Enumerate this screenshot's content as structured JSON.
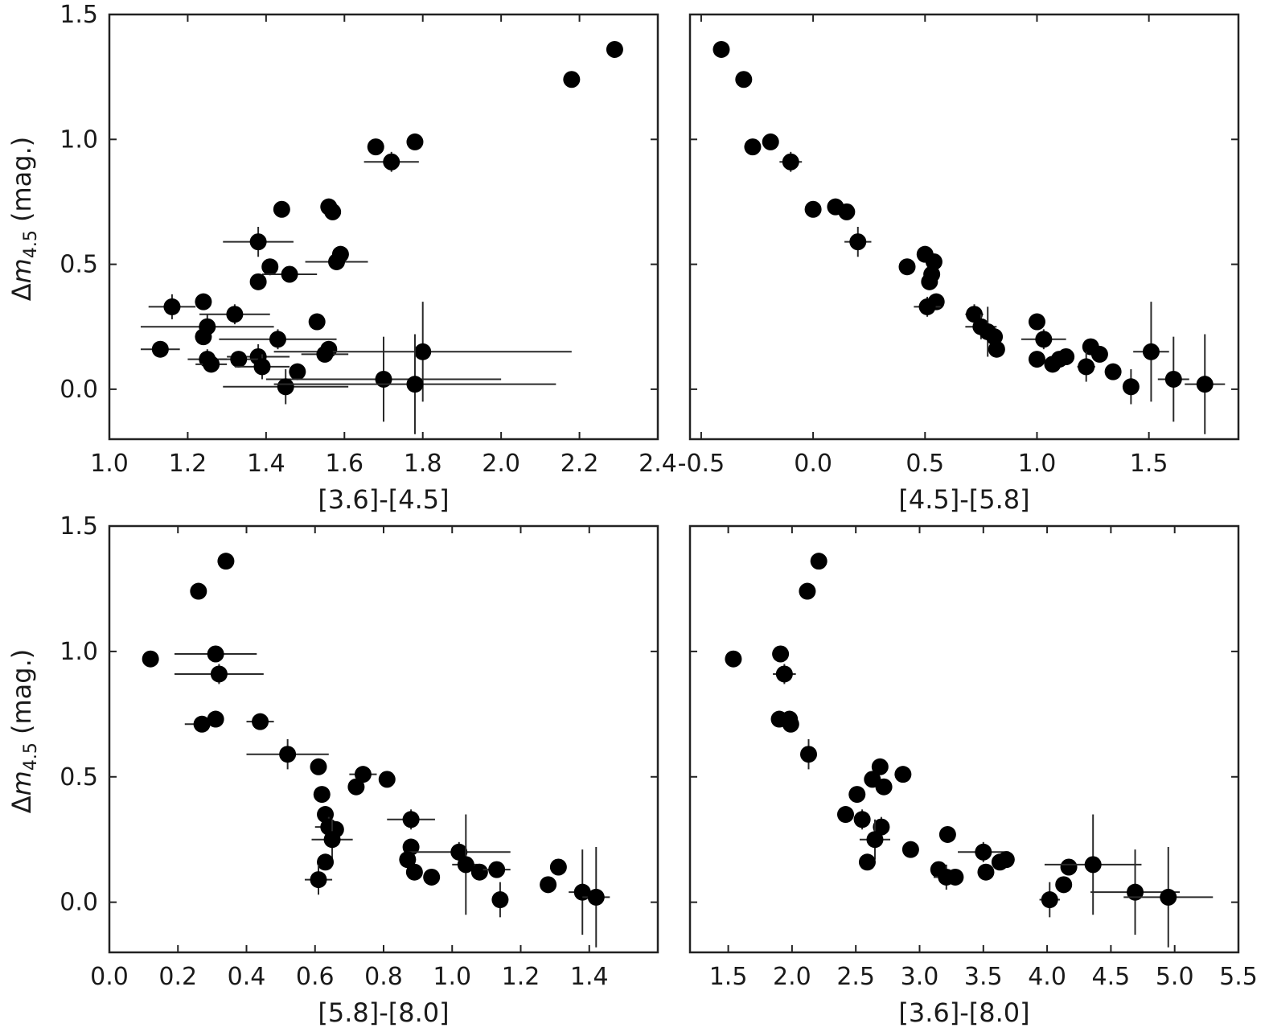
{
  "chart_data": [
    {
      "type": "scatter",
      "xlabel": "[3.6]-[4.5]",
      "ylabel_prefix": "Δ",
      "ylabel_var": "m",
      "ylabel_sub": "4.5",
      "ylabel_unit": " (mag.)",
      "xlim": [
        1.0,
        2.4
      ],
      "ylim": [
        -0.2,
        1.5
      ],
      "xticks": [
        "1.0",
        "1.2",
        "1.4",
        "1.6",
        "1.8",
        "2.0",
        "2.2",
        "2.4"
      ],
      "yticks": [
        "0.0",
        "0.5",
        "1.0",
        "1.5"
      ],
      "grid": false,
      "points": [
        {
          "x": 2.29,
          "y": 1.36,
          "xe": 0,
          "ye": 0
        },
        {
          "x": 2.18,
          "y": 1.24,
          "xe": 0,
          "ye": 0
        },
        {
          "x": 1.68,
          "y": 0.97,
          "xe": 0,
          "ye": 0
        },
        {
          "x": 1.78,
          "y": 0.99,
          "xe": 0,
          "ye": 0
        },
        {
          "x": 1.72,
          "y": 0.91,
          "xe": 0.07,
          "ye": 0.04
        },
        {
          "x": 1.44,
          "y": 0.72,
          "xe": 0,
          "ye": 0
        },
        {
          "x": 1.56,
          "y": 0.73,
          "xe": 0,
          "ye": 0
        },
        {
          "x": 1.57,
          "y": 0.71,
          "xe": 0,
          "ye": 0
        },
        {
          "x": 1.38,
          "y": 0.59,
          "xe": 0.09,
          "ye": 0.06
        },
        {
          "x": 1.59,
          "y": 0.54,
          "xe": 0,
          "ye": 0
        },
        {
          "x": 1.58,
          "y": 0.51,
          "xe": 0.08,
          "ye": 0.03
        },
        {
          "x": 1.41,
          "y": 0.49,
          "xe": 0,
          "ye": 0
        },
        {
          "x": 1.46,
          "y": 0.46,
          "xe": 0.07,
          "ye": 0
        },
        {
          "x": 1.38,
          "y": 0.43,
          "xe": 0,
          "ye": 0
        },
        {
          "x": 1.16,
          "y": 0.33,
          "xe": 0.06,
          "ye": 0.05
        },
        {
          "x": 1.24,
          "y": 0.35,
          "xe": 0,
          "ye": 0
        },
        {
          "x": 1.32,
          "y": 0.3,
          "xe": 0.09,
          "ye": 0.04
        },
        {
          "x": 1.25,
          "y": 0.25,
          "xe": 0.17,
          "ye": 0.05
        },
        {
          "x": 1.53,
          "y": 0.27,
          "xe": 0,
          "ye": 0
        },
        {
          "x": 1.24,
          "y": 0.21,
          "xe": 0,
          "ye": 0
        },
        {
          "x": 1.43,
          "y": 0.2,
          "xe": 0.15,
          "ye": 0.04
        },
        {
          "x": 1.56,
          "y": 0.16,
          "xe": 0,
          "ye": 0.03
        },
        {
          "x": 1.13,
          "y": 0.16,
          "xe": 0.05,
          "ye": 0
        },
        {
          "x": 1.8,
          "y": 0.15,
          "xe": 0.38,
          "ye": 0.2
        },
        {
          "x": 1.55,
          "y": 0.14,
          "xe": 0.06,
          "ye": 0.03
        },
        {
          "x": 1.25,
          "y": 0.12,
          "xe": 0.05,
          "ye": 0.04
        },
        {
          "x": 1.38,
          "y": 0.13,
          "xe": 0.08,
          "ye": 0.05
        },
        {
          "x": 1.33,
          "y": 0.12,
          "xe": 0.05,
          "ye": 0
        },
        {
          "x": 1.26,
          "y": 0.1,
          "xe": 0.04,
          "ye": 0
        },
        {
          "x": 1.39,
          "y": 0.09,
          "xe": 0.07,
          "ye": 0.05
        },
        {
          "x": 1.48,
          "y": 0.07,
          "xe": 0,
          "ye": 0
        },
        {
          "x": 1.7,
          "y": 0.04,
          "xe": 0.3,
          "ye": 0.17
        },
        {
          "x": 1.45,
          "y": 0.01,
          "xe": 0.16,
          "ye": 0.07
        },
        {
          "x": 1.78,
          "y": 0.02,
          "xe": 0.36,
          "ye": 0.2
        }
      ]
    },
    {
      "type": "scatter",
      "xlabel": "[4.5]-[5.8]",
      "ylabel_prefix": "",
      "ylabel_var": "",
      "ylabel_sub": "",
      "ylabel_unit": "",
      "xlim": [
        -0.55,
        1.9
      ],
      "ylim": [
        -0.2,
        1.5
      ],
      "xticks": [
        "-0.5",
        "0.0",
        "0.5",
        "1.0",
        "1.5"
      ],
      "yticks": [],
      "grid": false,
      "points": [
        {
          "x": -0.41,
          "y": 1.36,
          "xe": 0,
          "ye": 0
        },
        {
          "x": -0.31,
          "y": 1.24,
          "xe": 0,
          "ye": 0
        },
        {
          "x": -0.27,
          "y": 0.97,
          "xe": 0,
          "ye": 0
        },
        {
          "x": -0.19,
          "y": 0.99,
          "xe": 0,
          "ye": 0
        },
        {
          "x": -0.1,
          "y": 0.91,
          "xe": 0.05,
          "ye": 0.04
        },
        {
          "x": 0.0,
          "y": 0.72,
          "xe": 0,
          "ye": 0
        },
        {
          "x": 0.1,
          "y": 0.73,
          "xe": 0,
          "ye": 0
        },
        {
          "x": 0.15,
          "y": 0.71,
          "xe": 0,
          "ye": 0
        },
        {
          "x": 0.2,
          "y": 0.59,
          "xe": 0.06,
          "ye": 0.06
        },
        {
          "x": 0.42,
          "y": 0.49,
          "xe": 0,
          "ye": 0
        },
        {
          "x": 0.5,
          "y": 0.54,
          "xe": 0,
          "ye": 0
        },
        {
          "x": 0.54,
          "y": 0.51,
          "xe": 0,
          "ye": 0.03
        },
        {
          "x": 0.53,
          "y": 0.46,
          "xe": 0,
          "ye": 0
        },
        {
          "x": 0.52,
          "y": 0.43,
          "xe": 0,
          "ye": 0
        },
        {
          "x": 0.55,
          "y": 0.35,
          "xe": 0,
          "ye": 0
        },
        {
          "x": 0.51,
          "y": 0.33,
          "xe": 0.06,
          "ye": 0.04
        },
        {
          "x": 0.72,
          "y": 0.3,
          "xe": 0.04,
          "ye": 0.04
        },
        {
          "x": 0.75,
          "y": 0.25,
          "xe": 0.07,
          "ye": 0.05
        },
        {
          "x": 0.78,
          "y": 0.23,
          "xe": 0,
          "ye": 0.1
        },
        {
          "x": 0.81,
          "y": 0.21,
          "xe": 0,
          "ye": 0
        },
        {
          "x": 0.82,
          "y": 0.16,
          "xe": 0,
          "ye": 0
        },
        {
          "x": 1.0,
          "y": 0.27,
          "xe": 0,
          "ye": 0
        },
        {
          "x": 1.03,
          "y": 0.2,
          "xe": 0.1,
          "ye": 0.04
        },
        {
          "x": 1.0,
          "y": 0.12,
          "xe": 0,
          "ye": 0
        },
        {
          "x": 1.07,
          "y": 0.1,
          "xe": 0,
          "ye": 0
        },
        {
          "x": 1.1,
          "y": 0.12,
          "xe": 0,
          "ye": 0
        },
        {
          "x": 1.13,
          "y": 0.13,
          "xe": 0,
          "ye": 0
        },
        {
          "x": 1.24,
          "y": 0.17,
          "xe": 0,
          "ye": 0
        },
        {
          "x": 1.28,
          "y": 0.14,
          "xe": 0,
          "ye": 0
        },
        {
          "x": 1.22,
          "y": 0.09,
          "xe": 0.04,
          "ye": 0.06
        },
        {
          "x": 1.34,
          "y": 0.07,
          "xe": 0,
          "ye": 0
        },
        {
          "x": 1.51,
          "y": 0.15,
          "xe": 0.08,
          "ye": 0.2
        },
        {
          "x": 1.42,
          "y": 0.01,
          "xe": 0,
          "ye": 0.07
        },
        {
          "x": 1.61,
          "y": 0.04,
          "xe": 0.07,
          "ye": 0.17
        },
        {
          "x": 1.75,
          "y": 0.02,
          "xe": 0.09,
          "ye": 0.2
        }
      ]
    },
    {
      "type": "scatter",
      "xlabel": "[5.8]-[8.0]",
      "ylabel_prefix": "Δ",
      "ylabel_var": "m",
      "ylabel_sub": "4.5",
      "ylabel_unit": " (mag.)",
      "xlim": [
        0.0,
        1.6
      ],
      "ylim": [
        -0.2,
        1.5
      ],
      "xticks": [
        "0.0",
        "0.2",
        "0.4",
        "0.6",
        "0.8",
        "1.0",
        "1.2",
        "1.4"
      ],
      "yticks": [
        "0.0",
        "0.5",
        "1.0",
        "1.5"
      ],
      "grid": false,
      "points": [
        {
          "x": 0.34,
          "y": 1.36,
          "xe": 0,
          "ye": 0
        },
        {
          "x": 0.26,
          "y": 1.24,
          "xe": 0,
          "ye": 0
        },
        {
          "x": 0.12,
          "y": 0.97,
          "xe": 0,
          "ye": 0
        },
        {
          "x": 0.31,
          "y": 0.99,
          "xe": 0.12,
          "ye": 0
        },
        {
          "x": 0.32,
          "y": 0.91,
          "xe": 0.13,
          "ye": 0.04
        },
        {
          "x": 0.27,
          "y": 0.71,
          "xe": 0.05,
          "ye": 0
        },
        {
          "x": 0.31,
          "y": 0.73,
          "xe": 0,
          "ye": 0
        },
        {
          "x": 0.44,
          "y": 0.72,
          "xe": 0.04,
          "ye": 0
        },
        {
          "x": 0.52,
          "y": 0.59,
          "xe": 0.12,
          "ye": 0.06
        },
        {
          "x": 0.61,
          "y": 0.54,
          "xe": 0,
          "ye": 0
        },
        {
          "x": 0.62,
          "y": 0.43,
          "xe": 0,
          "ye": 0
        },
        {
          "x": 0.74,
          "y": 0.51,
          "xe": 0.04,
          "ye": 0.03
        },
        {
          "x": 0.72,
          "y": 0.46,
          "xe": 0,
          "ye": 0
        },
        {
          "x": 0.81,
          "y": 0.49,
          "xe": 0,
          "ye": 0
        },
        {
          "x": 0.63,
          "y": 0.35,
          "xe": 0,
          "ye": 0
        },
        {
          "x": 0.88,
          "y": 0.33,
          "xe": 0.07,
          "ye": 0.04
        },
        {
          "x": 0.64,
          "y": 0.3,
          "xe": 0.04,
          "ye": 0.04
        },
        {
          "x": 0.66,
          "y": 0.29,
          "xe": 0,
          "ye": 0
        },
        {
          "x": 0.65,
          "y": 0.25,
          "xe": 0.06,
          "ye": 0.08
        },
        {
          "x": 0.63,
          "y": 0.16,
          "xe": 0,
          "ye": 0
        },
        {
          "x": 0.88,
          "y": 0.22,
          "xe": 0,
          "ye": 0
        },
        {
          "x": 1.02,
          "y": 0.2,
          "xe": 0.15,
          "ye": 0.04
        },
        {
          "x": 0.87,
          "y": 0.17,
          "xe": 0,
          "ye": 0
        },
        {
          "x": 0.89,
          "y": 0.12,
          "xe": 0,
          "ye": 0
        },
        {
          "x": 0.94,
          "y": 0.1,
          "xe": 0,
          "ye": 0
        },
        {
          "x": 1.04,
          "y": 0.15,
          "xe": 0.04,
          "ye": 0.2
        },
        {
          "x": 1.08,
          "y": 0.12,
          "xe": 0,
          "ye": 0
        },
        {
          "x": 1.13,
          "y": 0.13,
          "xe": 0.04,
          "ye": 0
        },
        {
          "x": 1.14,
          "y": 0.01,
          "xe": 0,
          "ye": 0.07
        },
        {
          "x": 0.61,
          "y": 0.09,
          "xe": 0.04,
          "ye": 0.06
        },
        {
          "x": 1.28,
          "y": 0.07,
          "xe": 0,
          "ye": 0
        },
        {
          "x": 1.31,
          "y": 0.14,
          "xe": 0,
          "ye": 0
        },
        {
          "x": 1.38,
          "y": 0.04,
          "xe": 0.04,
          "ye": 0.17
        },
        {
          "x": 1.42,
          "y": 0.02,
          "xe": 0.04,
          "ye": 0.2
        }
      ]
    },
    {
      "type": "scatter",
      "xlabel": "[3.6]-[8.0]",
      "ylabel_prefix": "",
      "ylabel_var": "",
      "ylabel_sub": "",
      "ylabel_unit": "",
      "xlim": [
        1.2,
        5.5
      ],
      "ylim": [
        -0.2,
        1.5
      ],
      "xticks": [
        "1.5",
        "2.0",
        "2.5",
        "3.0",
        "3.5",
        "4.0",
        "4.5",
        "5.0",
        "5.5"
      ],
      "yticks": [],
      "grid": false,
      "points": [
        {
          "x": 2.21,
          "y": 1.36,
          "xe": 0,
          "ye": 0
        },
        {
          "x": 2.12,
          "y": 1.24,
          "xe": 0,
          "ye": 0
        },
        {
          "x": 1.54,
          "y": 0.97,
          "xe": 0,
          "ye": 0
        },
        {
          "x": 1.91,
          "y": 0.99,
          "xe": 0.06,
          "ye": 0
        },
        {
          "x": 1.94,
          "y": 0.91,
          "xe": 0.09,
          "ye": 0.04
        },
        {
          "x": 1.9,
          "y": 0.73,
          "xe": 0,
          "ye": 0
        },
        {
          "x": 1.98,
          "y": 0.73,
          "xe": 0,
          "ye": 0
        },
        {
          "x": 1.99,
          "y": 0.71,
          "xe": 0,
          "ye": 0
        },
        {
          "x": 2.13,
          "y": 0.59,
          "xe": 0.05,
          "ye": 0.06
        },
        {
          "x": 2.69,
          "y": 0.54,
          "xe": 0,
          "ye": 0
        },
        {
          "x": 2.87,
          "y": 0.51,
          "xe": 0.05,
          "ye": 0.03
        },
        {
          "x": 2.63,
          "y": 0.49,
          "xe": 0,
          "ye": 0
        },
        {
          "x": 2.72,
          "y": 0.46,
          "xe": 0,
          "ye": 0
        },
        {
          "x": 2.51,
          "y": 0.43,
          "xe": 0,
          "ye": 0
        },
        {
          "x": 2.42,
          "y": 0.35,
          "xe": 0,
          "ye": 0
        },
        {
          "x": 2.55,
          "y": 0.33,
          "xe": 0.05,
          "ye": 0.04
        },
        {
          "x": 2.7,
          "y": 0.3,
          "xe": 0.05,
          "ye": 0.04
        },
        {
          "x": 3.22,
          "y": 0.27,
          "xe": 0,
          "ye": 0
        },
        {
          "x": 2.65,
          "y": 0.25,
          "xe": 0.12,
          "ye": 0.08
        },
        {
          "x": 2.93,
          "y": 0.21,
          "xe": 0,
          "ye": 0
        },
        {
          "x": 3.5,
          "y": 0.2,
          "xe": 0.2,
          "ye": 0.04
        },
        {
          "x": 3.63,
          "y": 0.16,
          "xe": 0.05,
          "ye": 0
        },
        {
          "x": 3.68,
          "y": 0.17,
          "xe": 0,
          "ye": 0
        },
        {
          "x": 2.59,
          "y": 0.16,
          "xe": 0,
          "ye": 0
        },
        {
          "x": 3.15,
          "y": 0.13,
          "xe": 0,
          "ye": 0
        },
        {
          "x": 3.52,
          "y": 0.12,
          "xe": 0,
          "ye": 0
        },
        {
          "x": 4.17,
          "y": 0.14,
          "xe": 0,
          "ye": 0
        },
        {
          "x": 4.36,
          "y": 0.15,
          "xe": 0.38,
          "ye": 0.2
        },
        {
          "x": 3.21,
          "y": 0.1,
          "xe": 0.1,
          "ye": 0.05
        },
        {
          "x": 3.28,
          "y": 0.1,
          "xe": 0,
          "ye": 0
        },
        {
          "x": 4.13,
          "y": 0.07,
          "xe": 0,
          "ye": 0
        },
        {
          "x": 4.02,
          "y": 0.01,
          "xe": 0.08,
          "ye": 0.07
        },
        {
          "x": 4.69,
          "y": 0.04,
          "xe": 0.35,
          "ye": 0.17
        },
        {
          "x": 4.95,
          "y": 0.02,
          "xe": 0.35,
          "ye": 0.2
        }
      ]
    }
  ]
}
